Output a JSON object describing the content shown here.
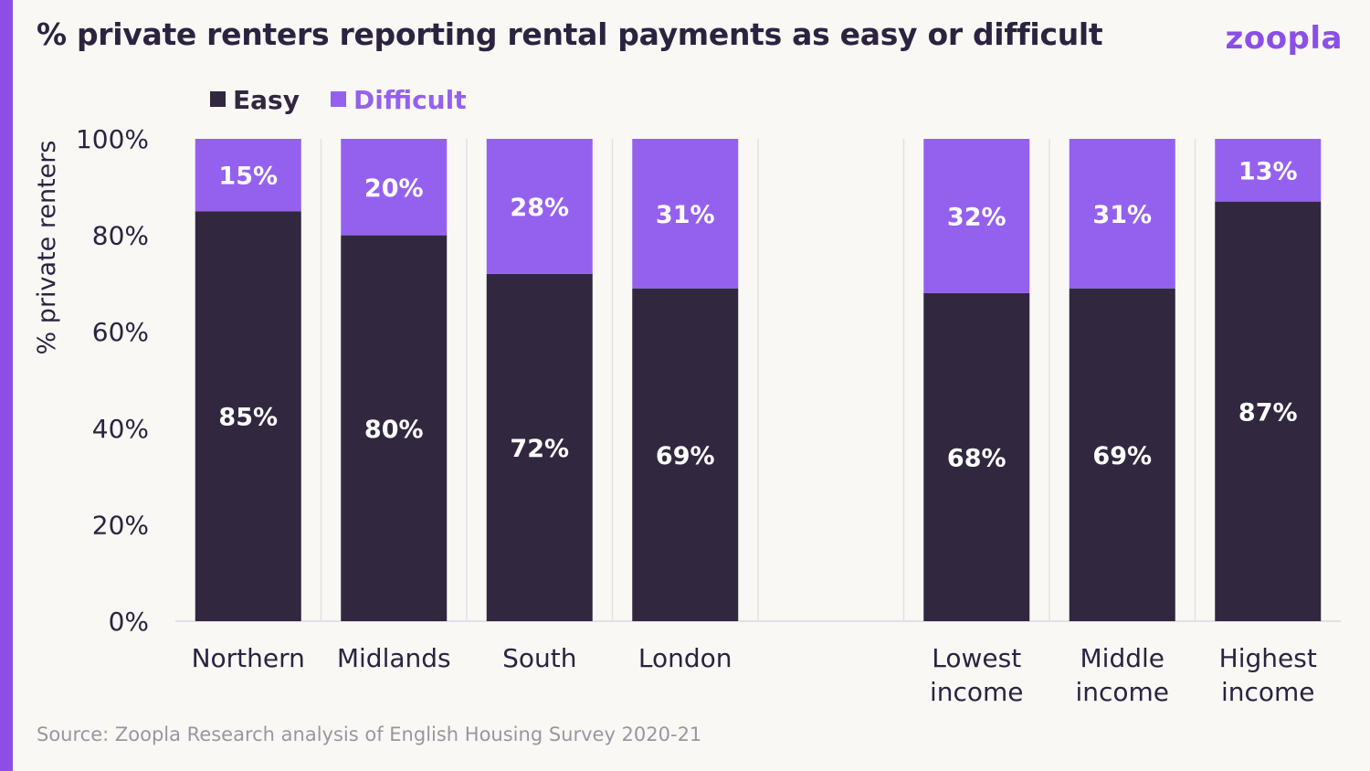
{
  "header": {
    "title": "% private renters reporting rental payments as easy or difficult",
    "logo": "zoopla"
  },
  "footer": {
    "source": "Source: Zoopla Research analysis of English Housing Survey 2020-21"
  },
  "colors": {
    "easy": "#31273f",
    "difficult": "#9461ef",
    "accent": "#8b4fe8",
    "grid": "#e3e0e6"
  },
  "chart_data": {
    "type": "bar",
    "stacked": true,
    "ylabel": "% private renters",
    "xlabel": "",
    "ylim": [
      0,
      100
    ],
    "y_ticks": [
      "0%",
      "20%",
      "40%",
      "60%",
      "80%",
      "100%"
    ],
    "y_tick_values": [
      0,
      20,
      40,
      60,
      80,
      100
    ],
    "legend_position": "top-left",
    "grid": true,
    "categories": [
      [
        "Northern"
      ],
      [
        "Midlands"
      ],
      [
        "South"
      ],
      [
        "London"
      ],
      [],
      [
        "Lowest",
        "income"
      ],
      [
        "Middle",
        "income"
      ],
      [
        "Highest",
        "income"
      ]
    ],
    "series": [
      {
        "name": "Easy",
        "values": [
          85,
          80,
          72,
          69,
          null,
          68,
          69,
          87
        ],
        "labels": [
          "85%",
          "80%",
          "72%",
          "69%",
          "",
          "68%",
          "69%",
          "87%"
        ]
      },
      {
        "name": "Difficult",
        "values": [
          15,
          20,
          28,
          31,
          null,
          32,
          31,
          13
        ],
        "labels": [
          "15%",
          "20%",
          "28%",
          "31%",
          "",
          "32%",
          "31%",
          "13%"
        ]
      }
    ]
  }
}
